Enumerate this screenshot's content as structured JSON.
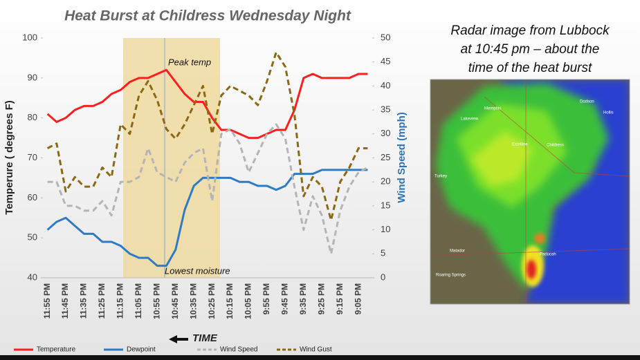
{
  "chart_data": {
    "type": "line",
    "title": "Heat Burst at Childress Wednesday Night",
    "xlabel": "TIME",
    "ylabel": "Temperure ( degrees F)",
    "y2label": "Wind Speed (mph)",
    "categories": [
      "11:55 PM",
      null,
      "11:45 PM",
      null,
      "11:35 PM",
      null,
      "11:25 PM",
      null,
      "11:15 PM",
      null,
      "11:05 PM",
      null,
      "10:55 PM",
      null,
      "10:45 PM",
      null,
      "10:35 PM",
      null,
      "10:25 PM",
      null,
      "10:15 PM",
      null,
      "10:05 PM",
      null,
      "9:55 PM",
      null,
      "9:45 PM",
      null,
      "9:35 PM",
      null,
      "9:25 PM",
      null,
      "9:15 PM",
      null,
      "9:05 PM",
      null
    ],
    "series": [
      {
        "name": "Temperature",
        "color": "#ff1f1f",
        "dash": false,
        "values": [
          81,
          79,
          80,
          82,
          83,
          83,
          84,
          86,
          87,
          89,
          90,
          90,
          91,
          92,
          89,
          86,
          84,
          84,
          80,
          77,
          77,
          76,
          75,
          75,
          76,
          77,
          77,
          82,
          90,
          91,
          90,
          90,
          90,
          90,
          91,
          91
        ]
      },
      {
        "name": "Dewpoint",
        "color": "#2e7bc4",
        "dash": false,
        "values": [
          52,
          54,
          55,
          53,
          51,
          51,
          49,
          49,
          48,
          46,
          45,
          45,
          43,
          43,
          47,
          57,
          63,
          65,
          65,
          65,
          65,
          64,
          64,
          63,
          63,
          62,
          63,
          66,
          66,
          66,
          67,
          67,
          67,
          67,
          67,
          67
        ]
      },
      {
        "name": "Wind Speed",
        "color": "#b4b4b4",
        "dash": true,
        "axis": "y2",
        "values": [
          20,
          20,
          15,
          15,
          14,
          14,
          16,
          13,
          20,
          20,
          21,
          27,
          22,
          21,
          20,
          24,
          26,
          27,
          16,
          30,
          31,
          28,
          22,
          26,
          30,
          32,
          29,
          19,
          10,
          17,
          13,
          5,
          14,
          19,
          22,
          23
        ]
      },
      {
        "name": "Wind Gust",
        "color": "#8b6914",
        "dash": true,
        "axis": "y2",
        "values": [
          27,
          28,
          18,
          21,
          19,
          19,
          23,
          21,
          32,
          30,
          38,
          41,
          37,
          31,
          29,
          32,
          36,
          40,
          30,
          38,
          40,
          39,
          38,
          36,
          41,
          47,
          44,
          34,
          17,
          21,
          19,
          12,
          20,
          23,
          27,
          27
        ]
      }
    ],
    "ylim": [
      40,
      100
    ],
    "yticks": [
      40,
      50,
      60,
      70,
      80,
      90,
      100
    ],
    "y2lim": [
      0,
      50
    ],
    "y2ticks": [
      0,
      5,
      10,
      15,
      20,
      25,
      30,
      35,
      40,
      45,
      50
    ],
    "annotations": [
      "Peak temp",
      "Lowest moisture"
    ],
    "legend": "bottom"
  },
  "radar": {
    "caption": [
      "Radar image from Lubbock",
      "at 10:45 pm – about the",
      "time of the heat burst"
    ],
    "labels": [
      "Memphis",
      "Lakeview",
      "Estelline",
      "Childress",
      "Dodson",
      "Hollis",
      "Turkey",
      "Paducah",
      "Matador",
      "Roaring Springs"
    ]
  }
}
